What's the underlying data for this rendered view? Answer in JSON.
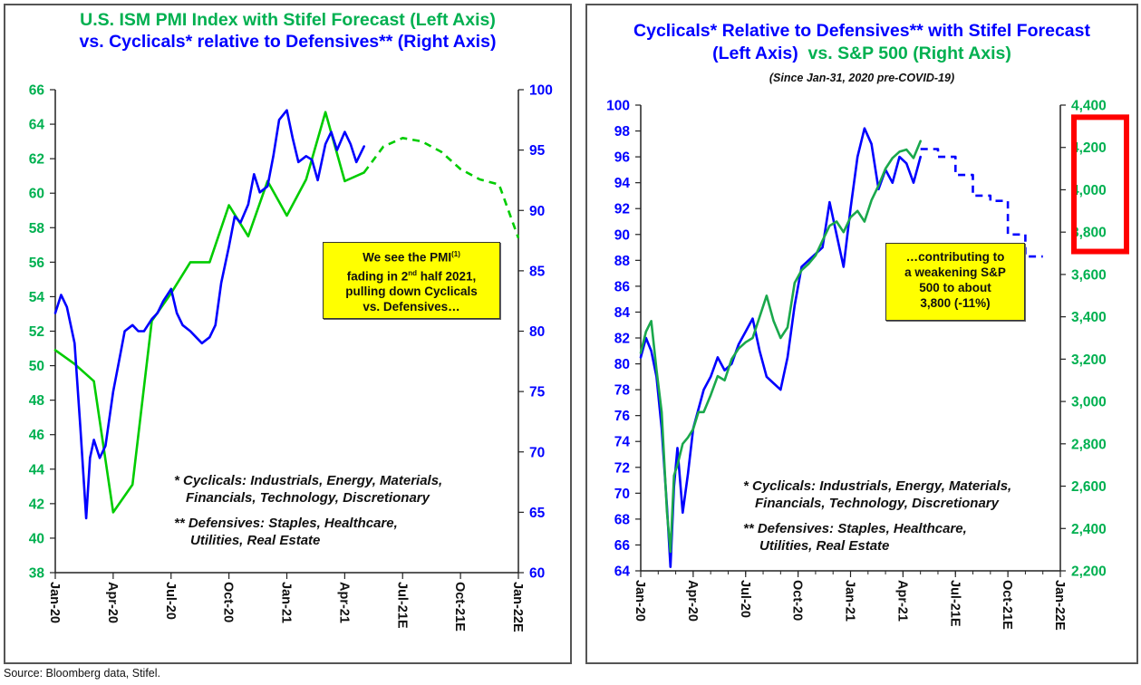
{
  "source": "Source: Bloomberg data, Stifel.",
  "colors": {
    "green": "#00b050",
    "line_green": "#00cc00",
    "sp_green": "#1aa84c",
    "blue": "#0000ff",
    "callout_bg": "#ffff00",
    "highlight_red": "#ff0000"
  },
  "left_panel": {
    "title_line1": "U.S. ISM PMI Index with Stifel Forecast (Left Axis)",
    "title_line2": "vs. Cyclicals* relative to Defensives**  (Right Axis)",
    "callout": {
      "line1": "We see the PMI",
      "sup1": "(1)",
      "line2a": "fading in 2",
      "sup2": "nd",
      "line2b": " half 2021,",
      "line3": "pulling down Cyclicals",
      "line4": "vs. Defensives…"
    },
    "notes": {
      "cyc1": "* Cyclicals:  Industrials, Energy, Materials,",
      "cyc2": "Financials, Technology, Discretionary",
      "def1": "** Defensives: Staples, Healthcare,",
      "def2": "Utilities, Real Estate"
    }
  },
  "right_panel": {
    "title_line1": "Cyclicals* Relative to Defensives** with Stifel Forecast",
    "title_line2a": "(Left Axis)",
    "title_line2b": "  vs. S&P 500 (Right Axis)",
    "subtitle": "(Since Jan-31, 2020 pre-COVID-19)",
    "callout": {
      "line1": "…contributing to",
      "line2": "a weakening S&P",
      "line3": "500 to about",
      "line4": "3,800 (-11%)"
    },
    "notes": {
      "cyc1": "* Cyclicals:  Industrials, Energy, Materials,",
      "cyc2": "Financials, Technology, Discretionary",
      "def1": "** Defensives: Staples, Healthcare,",
      "def2": "Utilities, Real Estate"
    },
    "highlight": "S&P 500 forecast range 3,700–4,300 highlighted"
  },
  "chart_data": [
    {
      "type": "line",
      "title": "U.S. ISM PMI Index with Stifel Forecast (Left Axis) vs. Cyclicals* relative to Defensives** (Right Axis)",
      "x_tick_labels": [
        "Jan-20",
        "Apr-20",
        "Jul-20",
        "Oct-20",
        "Jan-21",
        "Apr-21",
        "Jul-21E",
        "Oct-21E",
        "Jan-22E"
      ],
      "x_range_months": [
        0,
        24
      ],
      "y_left": {
        "label": "ISM PMI",
        "range": [
          38,
          66
        ],
        "ticks": [
          38,
          40,
          42,
          44,
          46,
          48,
          50,
          52,
          54,
          56,
          58,
          60,
          62,
          64,
          66
        ]
      },
      "y_right": {
        "label": "Cyclicals relative to Defensives",
        "range": [
          60,
          100
        ],
        "ticks": [
          60,
          65,
          70,
          75,
          80,
          85,
          90,
          95,
          100
        ]
      },
      "grid": false,
      "series": [
        {
          "name": "ISM PMI (actual)",
          "axis": "left",
          "style": "solid",
          "color": "#00cc00",
          "x_months": [
            0,
            1,
            2,
            3,
            4,
            5,
            6,
            7,
            8,
            9,
            10,
            11,
            12,
            13,
            14,
            15,
            16
          ],
          "values": [
            50.9,
            50.1,
            49.1,
            41.5,
            43.1,
            52.6,
            54.2,
            56.0,
            56.0,
            59.3,
            57.5,
            60.7,
            58.7,
            60.8,
            64.7,
            60.7,
            61.2
          ]
        },
        {
          "name": "ISM PMI (Stifel forecast)",
          "axis": "left",
          "style": "dashed",
          "color": "#00cc00",
          "x_months": [
            16,
            17,
            18,
            19,
            20,
            21,
            22,
            23,
            24
          ],
          "values": [
            61.2,
            62.7,
            63.2,
            63.0,
            62.4,
            61.4,
            60.8,
            60.5,
            57.4
          ]
        },
        {
          "name": "Cyclicals relative to Defensives",
          "axis": "right",
          "style": "solid",
          "color": "#0000ff",
          "x_months": [
            0,
            0.3,
            0.6,
            1.0,
            1.3,
            1.6,
            1.8,
            2.0,
            2.3,
            2.6,
            3.0,
            3.3,
            3.6,
            4.0,
            4.3,
            4.6,
            5.0,
            5.3,
            5.6,
            6.0,
            6.3,
            6.6,
            7.0,
            7.3,
            7.6,
            8.0,
            8.3,
            8.6,
            9.0,
            9.3,
            9.6,
            10.0,
            10.3,
            10.6,
            11.0,
            11.3,
            11.6,
            12.0,
            12.3,
            12.6,
            13.0,
            13.3,
            13.6,
            14.0,
            14.3,
            14.6,
            15.0,
            15.3,
            15.6,
            16.0
          ],
          "values": [
            81.5,
            83.0,
            82.0,
            79.0,
            72.0,
            64.5,
            69.5,
            71.0,
            69.5,
            70.5,
            75.0,
            77.5,
            80.0,
            80.5,
            80.0,
            80.0,
            81.0,
            81.5,
            82.5,
            83.5,
            81.5,
            80.5,
            80.0,
            79.5,
            79.0,
            79.5,
            80.5,
            84.0,
            87.0,
            89.5,
            89.0,
            90.5,
            93.0,
            91.5,
            92.0,
            94.5,
            97.5,
            98.3,
            96.0,
            94.0,
            94.5,
            94.2,
            92.5,
            95.5,
            96.5,
            95.0,
            96.5,
            95.5,
            94.0,
            95.3
          ]
        }
      ]
    },
    {
      "type": "line",
      "title": "Cyclicals* Relative to Defensives** with Stifel Forecast (Left Axis) vs. S&P 500 (Right Axis)",
      "subtitle": "(Since Jan-31, 2020 pre-COVID-19)",
      "x_tick_labels": [
        "Jan-20",
        "Apr-20",
        "Jul-20",
        "Oct-20",
        "Jan-21",
        "Apr-21",
        "Jul-21E",
        "Oct-21E",
        "Jan-22E"
      ],
      "x_range_months": [
        0,
        24
      ],
      "y_left": {
        "label": "Cyclicals relative to Defensives",
        "range": [
          64,
          100
        ],
        "ticks": [
          64,
          66,
          68,
          70,
          72,
          74,
          76,
          78,
          80,
          82,
          84,
          86,
          88,
          90,
          92,
          94,
          96,
          98,
          100
        ]
      },
      "y_right": {
        "label": "S&P 500",
        "range": [
          2200,
          4400
        ],
        "ticks": [
          "2,200",
          "2,400",
          "2,600",
          "2,800",
          "3,000",
          "3,200",
          "3,400",
          "3,600",
          "3,800",
          "4,000",
          "4,200",
          "4,400"
        ]
      },
      "grid": false,
      "highlighted_range_right_axis": [
        3700,
        4300
      ],
      "series": [
        {
          "name": "Cyclicals relative to Defensives (actual)",
          "axis": "left",
          "style": "solid",
          "color": "#0000ff",
          "x_months": [
            0,
            0.3,
            0.6,
            0.9,
            1.2,
            1.5,
            1.7,
            1.9,
            2.1,
            2.4,
            2.7,
            3.0,
            3.3,
            3.6,
            4.0,
            4.4,
            4.8,
            5.2,
            5.6,
            6.0,
            6.4,
            6.8,
            7.2,
            7.6,
            8.0,
            8.4,
            8.8,
            9.2,
            9.6,
            10.0,
            10.4,
            10.8,
            11.2,
            11.6,
            12.0,
            12.4,
            12.8,
            13.2,
            13.6,
            14.0,
            14.4,
            14.8,
            15.2,
            15.6,
            16.0
          ],
          "values": [
            80.5,
            82.0,
            81.0,
            79.0,
            75.0,
            69.0,
            64.3,
            70.5,
            73.5,
            68.5,
            71.5,
            75.0,
            76.5,
            78.0,
            79.0,
            80.5,
            79.5,
            80.0,
            81.5,
            82.5,
            83.5,
            81.0,
            79.0,
            78.5,
            78.0,
            80.5,
            84.5,
            87.5,
            88.0,
            88.5,
            89.0,
            92.5,
            90.0,
            87.5,
            92.0,
            96.0,
            98.2,
            97.0,
            93.5,
            95.0,
            94.0,
            96.0,
            95.5,
            94.0,
            96.0
          ]
        },
        {
          "name": "Cyclicals relative to Defensives (Stifel forecast)",
          "axis": "left",
          "style": "dashed-step",
          "color": "#0000ff",
          "x_months": [
            16,
            17,
            17,
            18,
            18,
            19,
            19,
            20,
            20,
            21,
            21,
            22,
            22,
            23
          ],
          "values": [
            96.6,
            96.6,
            96.0,
            96.0,
            94.6,
            94.6,
            93.0,
            93.0,
            92.6,
            92.6,
            90.0,
            90.0,
            88.3,
            88.3
          ]
        },
        {
          "name": "S&P 500",
          "axis": "right",
          "style": "solid",
          "color": "#1aa84c",
          "x_months": [
            0,
            0.3,
            0.6,
            0.9,
            1.2,
            1.5,
            1.7,
            1.9,
            2.1,
            2.4,
            2.7,
            3.0,
            3.3,
            3.6,
            4.0,
            4.4,
            4.8,
            5.2,
            5.6,
            6.0,
            6.4,
            6.8,
            7.2,
            7.6,
            8.0,
            8.4,
            8.8,
            9.2,
            9.6,
            10.0,
            10.4,
            10.8,
            11.2,
            11.6,
            12.0,
            12.4,
            12.8,
            13.2,
            13.6,
            14.0,
            14.4,
            14.8,
            15.2,
            15.6,
            16.0
          ],
          "values": [
            3230,
            3330,
            3380,
            3150,
            2950,
            2480,
            2290,
            2650,
            2700,
            2800,
            2830,
            2870,
            2950,
            2950,
            3030,
            3120,
            3100,
            3200,
            3250,
            3280,
            3300,
            3400,
            3500,
            3380,
            3300,
            3350,
            3560,
            3620,
            3650,
            3690,
            3760,
            3830,
            3850,
            3800,
            3870,
            3900,
            3850,
            3950,
            4020,
            4100,
            4150,
            4180,
            4190,
            4150,
            4230
          ]
        }
      ]
    }
  ]
}
